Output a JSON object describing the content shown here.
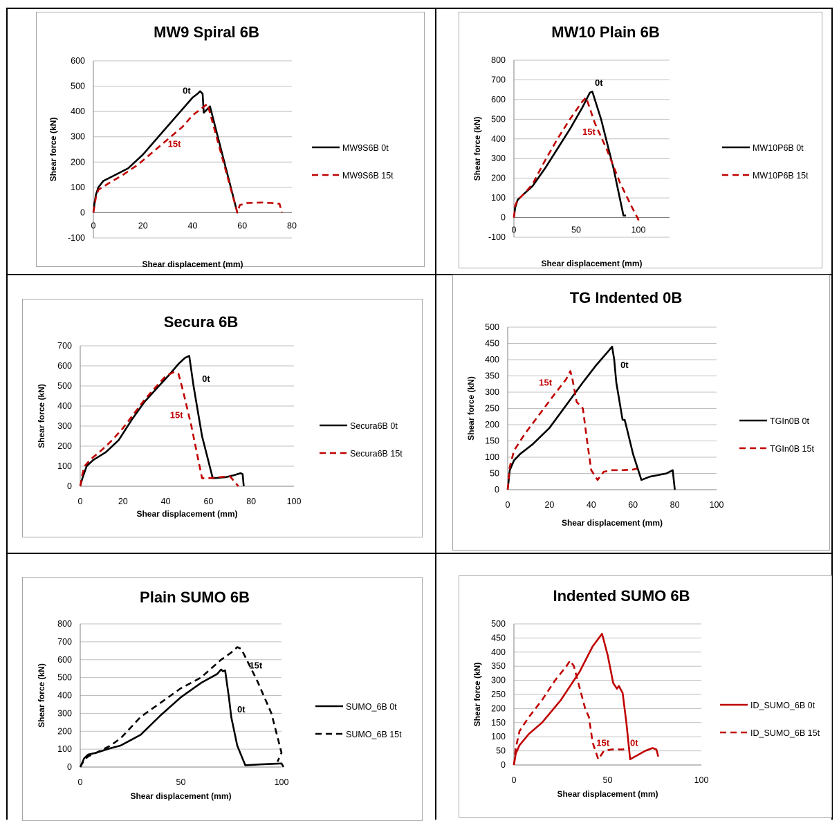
{
  "chart_data": [
    {
      "type": "line",
      "title": "MW9 Spiral 6B",
      "xlabel": "Shear displacement (mm)",
      "ylabel": "Shear force (kN)",
      "xlim": [
        0,
        80
      ],
      "ylim": [
        -100,
        600
      ],
      "xticks": [
        0,
        20,
        40,
        60,
        80
      ],
      "yticks": [
        -100,
        0,
        100,
        200,
        300,
        400,
        500,
        600
      ],
      "grid": true,
      "legend": "right",
      "annotations": [
        {
          "text": "0t",
          "x": 36,
          "y": 470,
          "color": "#000000"
        },
        {
          "text": "15t",
          "x": 30,
          "y": 260,
          "color": "#c00000"
        }
      ],
      "series": [
        {
          "name": "MW9S6B 0t",
          "color": "#000000",
          "dash": "solid",
          "x": [
            0,
            0.5,
            1,
            2,
            4,
            8,
            14,
            20,
            28,
            36,
            40,
            42,
            43,
            44,
            44.5,
            47,
            58
          ],
          "y": [
            0,
            40,
            70,
            100,
            125,
            145,
            175,
            230,
            320,
            410,
            455,
            470,
            480,
            470,
            395,
            420,
            0
          ]
        },
        {
          "name": "MW9S6B 15t",
          "color": "#c00000",
          "dash": "dashed",
          "x": [
            0,
            0.5,
            1,
            2,
            6,
            12,
            18,
            24,
            30,
            36,
            40,
            44,
            46,
            58,
            59,
            62,
            68,
            72,
            75,
            76
          ],
          "y": [
            0,
            30,
            60,
            90,
            115,
            150,
            190,
            240,
            290,
            340,
            385,
            415,
            430,
            0,
            30,
            38,
            40,
            38,
            35,
            0
          ]
        }
      ]
    },
    {
      "type": "line",
      "title": "MW10 Plain 6B",
      "xlabel": "Shear displacement (mm)",
      "ylabel": "Shear force (kN)",
      "xlim": [
        0,
        125
      ],
      "ylim": [
        -100,
        800
      ],
      "xticks": [
        0,
        50,
        100
      ],
      "yticks": [
        -100,
        0,
        100,
        200,
        300,
        400,
        500,
        600,
        700,
        800
      ],
      "grid": true,
      "legend": "right",
      "annotations": [
        {
          "text": "0t",
          "x": 65,
          "y": 670,
          "color": "#000000"
        },
        {
          "text": "15t",
          "x": 55,
          "y": 420,
          "color": "#c00000"
        }
      ],
      "series": [
        {
          "name": "MW10P6B 0t",
          "color": "#000000",
          "dash": "solid",
          "x": [
            0,
            1,
            3,
            8,
            15,
            25,
            35,
            45,
            55,
            61,
            63,
            70,
            80,
            88,
            90
          ],
          "y": [
            0,
            50,
            90,
            120,
            160,
            250,
            350,
            450,
            560,
            635,
            640,
            500,
            250,
            10,
            10
          ]
        },
        {
          "name": "MW10P6B 15t",
          "color": "#c00000",
          "dash": "dashed",
          "x": [
            0,
            1,
            3,
            8,
            15,
            25,
            35,
            45,
            55,
            58,
            65,
            75,
            85,
            95,
            100,
            98
          ],
          "y": [
            0,
            60,
            90,
            120,
            170,
            290,
            400,
            500,
            590,
            610,
            480,
            340,
            180,
            50,
            -10,
            -20
          ]
        }
      ]
    },
    {
      "type": "line",
      "title": "Secura 6B",
      "xlabel": "Shear displacement (mm)",
      "ylabel": "Shear force (kN)",
      "xlim": [
        0,
        100
      ],
      "ylim": [
        0,
        700
      ],
      "xticks": [
        0,
        20,
        40,
        60,
        80,
        100
      ],
      "yticks": [
        0,
        100,
        200,
        300,
        400,
        500,
        600,
        700
      ],
      "grid": true,
      "legend": "right",
      "annotations": [
        {
          "text": "0t",
          "x": 57,
          "y": 520,
          "color": "#000000"
        },
        {
          "text": "15t",
          "x": 42,
          "y": 340,
          "color": "#c00000"
        }
      ],
      "series": [
        {
          "name": "Secura6B 0t",
          "color": "#000000",
          "dash": "solid",
          "x": [
            0,
            1,
            3,
            6,
            12,
            18,
            24,
            30,
            36,
            42,
            46,
            49,
            51,
            53,
            57,
            62,
            68,
            72,
            75,
            76,
            76.5
          ],
          "y": [
            0,
            40,
            100,
            130,
            170,
            230,
            330,
            420,
            490,
            560,
            610,
            640,
            650,
            500,
            250,
            40,
            45,
            55,
            65,
            60,
            0
          ]
        },
        {
          "name": "Secura6B 15t",
          "color": "#c00000",
          "dash": "dashed",
          "x": [
            0,
            1,
            2,
            5,
            10,
            15,
            20,
            25,
            30,
            35,
            40,
            44,
            46,
            48,
            52,
            57,
            60,
            65,
            70,
            74
          ],
          "y": [
            0,
            60,
            100,
            135,
            180,
            230,
            290,
            360,
            430,
            490,
            550,
            570,
            560,
            480,
            300,
            40,
            40,
            45,
            50,
            0
          ]
        }
      ]
    },
    {
      "type": "line",
      "title": "TG Indented 0B",
      "xlabel": "Shear displacement (mm)",
      "ylabel": "Shear force (kN)",
      "xlim": [
        0,
        100
      ],
      "ylim": [
        0,
        500
      ],
      "xticks": [
        0,
        20,
        40,
        60,
        80,
        100
      ],
      "yticks": [
        0,
        50,
        100,
        150,
        200,
        250,
        300,
        350,
        400,
        450,
        500
      ],
      "grid": true,
      "legend": "right",
      "annotations": [
        {
          "text": "0t",
          "x": 54,
          "y": 375,
          "color": "#000000"
        },
        {
          "text": "15t",
          "x": 15,
          "y": 320,
          "color": "#c00000"
        }
      ],
      "series": [
        {
          "name": "TGIn0B 0t",
          "color": "#000000",
          "dash": "solid",
          "x": [
            0,
            1,
            3,
            6,
            12,
            20,
            28,
            36,
            42,
            48,
            50,
            51,
            52,
            55,
            56,
            57,
            60,
            64,
            68,
            72,
            76,
            79,
            80
          ],
          "y": [
            0,
            60,
            90,
            110,
            140,
            190,
            260,
            330,
            380,
            425,
            440,
            400,
            330,
            215,
            215,
            190,
            110,
            30,
            40,
            45,
            50,
            60,
            0
          ]
        },
        {
          "name": "TGIn0B 15t",
          "color": "#c00000",
          "dash": "dashed",
          "x": [
            0,
            1,
            3,
            8,
            15,
            22,
            28,
            30,
            31,
            33,
            36,
            38,
            40,
            43,
            46,
            50,
            55,
            60,
            62
          ],
          "y": [
            0,
            70,
            120,
            170,
            230,
            290,
            340,
            365,
            340,
            270,
            250,
            150,
            60,
            30,
            55,
            60,
            60,
            62,
            65
          ]
        }
      ]
    },
    {
      "type": "line",
      "title": "Plain SUMO 6B",
      "xlabel": "Shear displacement (mm)",
      "ylabel": "Shear force (kN)",
      "xlim": [
        0,
        100
      ],
      "ylim": [
        0,
        800
      ],
      "xticks": [
        0,
        50,
        100
      ],
      "yticks": [
        0,
        100,
        200,
        300,
        400,
        500,
        600,
        700,
        800
      ],
      "grid": true,
      "legend": "right",
      "annotations": [
        {
          "text": "0t",
          "x": 78,
          "y": 305,
          "color": "#000000"
        },
        {
          "text": "15t",
          "x": 84,
          "y": 550,
          "color": "#000000"
        }
      ],
      "series": [
        {
          "name": "SUMO_6B 0t",
          "color": "#000000",
          "dash": "solid",
          "x": [
            0,
            2,
            4,
            8,
            15,
            20,
            25,
            30,
            40,
            50,
            60,
            68,
            70,
            71,
            72,
            74,
            75,
            78,
            82,
            90,
            100,
            101
          ],
          "y": [
            0,
            50,
            70,
            80,
            105,
            120,
            150,
            180,
            290,
            390,
            470,
            520,
            545,
            535,
            540,
            380,
            280,
            120,
            10,
            15,
            20,
            0
          ]
        },
        {
          "name": "SUMO_6B 15t",
          "color": "#000000",
          "dash": "dashed",
          "x": [
            0,
            2,
            4,
            8,
            15,
            20,
            25,
            30,
            35,
            40,
            45,
            50,
            55,
            60,
            65,
            70,
            75,
            78,
            80,
            88,
            95,
            100,
            98
          ],
          "y": [
            0,
            40,
            60,
            80,
            120,
            160,
            220,
            280,
            320,
            360,
            400,
            440,
            470,
            500,
            550,
            600,
            640,
            670,
            660,
            480,
            300,
            80,
            30
          ]
        }
      ]
    },
    {
      "type": "line",
      "title": "Indented SUMO 6B",
      "xlabel": "Shear displacement (mm)",
      "ylabel": "Shear force (kN)",
      "xlim": [
        0,
        100
      ],
      "ylim": [
        0,
        500
      ],
      "xticks": [
        0,
        50,
        100
      ],
      "yticks": [
        0,
        50,
        100,
        150,
        200,
        250,
        300,
        350,
        400,
        450,
        500
      ],
      "grid": true,
      "legend": "right",
      "annotations": [
        {
          "text": "0t",
          "x": 62,
          "y": 68,
          "color": "#c00000"
        },
        {
          "text": "15t",
          "x": 44,
          "y": 68,
          "color": "#c00000"
        }
      ],
      "series": [
        {
          "name": "ID_SUMO_6B 0t",
          "color": "#c00000",
          "dash": "solid",
          "x": [
            0,
            1,
            3,
            8,
            15,
            25,
            35,
            42,
            47,
            50,
            53,
            55,
            56,
            58,
            60,
            62,
            66,
            70,
            74,
            76,
            77
          ],
          "y": [
            0,
            40,
            70,
            110,
            150,
            230,
            330,
            420,
            465,
            390,
            290,
            270,
            280,
            255,
            150,
            20,
            35,
            50,
            60,
            55,
            30
          ]
        },
        {
          "name": "ID_SUMO_6B 15t",
          "color": "#c00000",
          "dash": "dashed",
          "x": [
            0,
            1,
            3,
            8,
            15,
            22,
            28,
            30,
            32,
            34,
            36,
            38,
            40,
            42,
            45,
            48,
            52,
            58,
            62
          ],
          "y": [
            0,
            60,
            120,
            170,
            230,
            300,
            350,
            370,
            350,
            300,
            250,
            200,
            170,
            80,
            20,
            50,
            55,
            55,
            60
          ]
        }
      ]
    }
  ]
}
